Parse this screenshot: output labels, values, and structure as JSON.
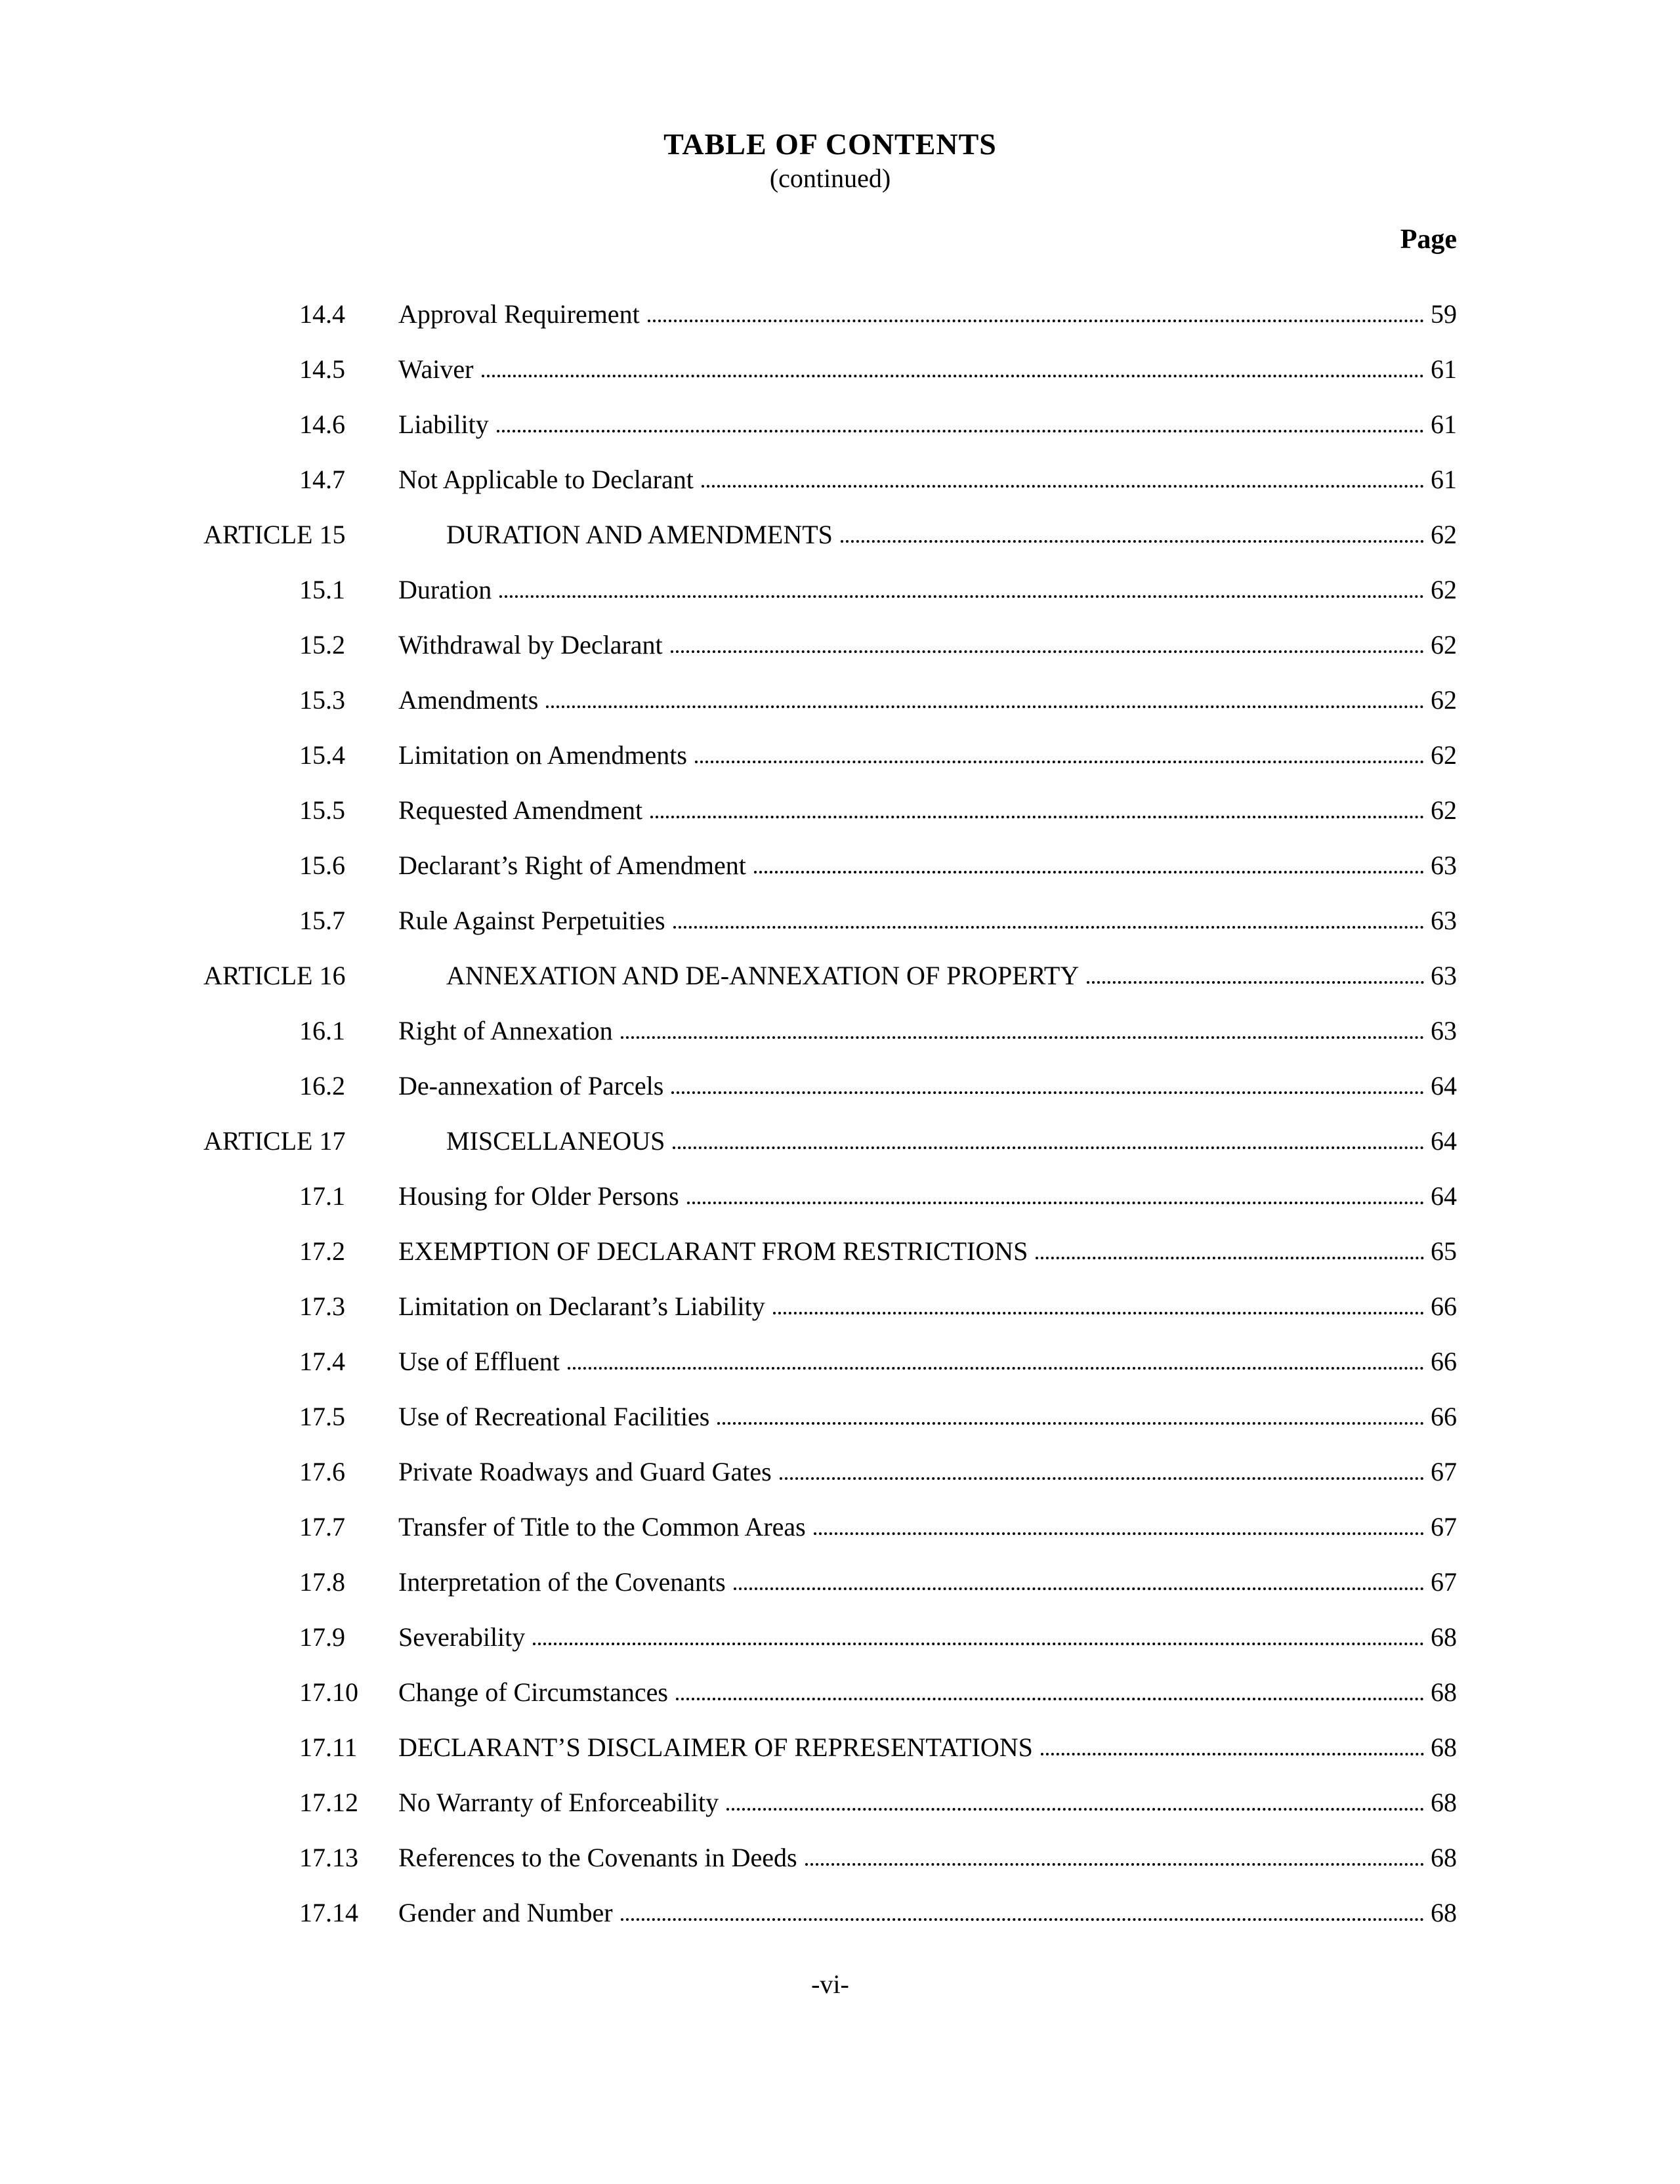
{
  "header": {
    "title": "TABLE OF CONTENTS",
    "subtitle": "(continued)",
    "page_column_label": "Page"
  },
  "toc_entries": [
    {
      "type": "section",
      "label": "14.4",
      "title": "Approval Requirement",
      "page": "59"
    },
    {
      "type": "section",
      "label": "14.5",
      "title": "Waiver",
      "page": "61"
    },
    {
      "type": "section",
      "label": "14.6",
      "title": "Liability",
      "page": "61"
    },
    {
      "type": "section",
      "label": "14.7",
      "title": "Not Applicable to Declarant",
      "page": "61"
    },
    {
      "type": "article",
      "label": "ARTICLE 15",
      "title": "DURATION AND AMENDMENTS",
      "page": "62"
    },
    {
      "type": "section",
      "label": "15.1",
      "title": "Duration",
      "page": "62"
    },
    {
      "type": "section",
      "label": "15.2",
      "title": "Withdrawal by Declarant",
      "page": "62"
    },
    {
      "type": "section",
      "label": "15.3",
      "title": "Amendments",
      "page": "62"
    },
    {
      "type": "section",
      "label": "15.4",
      "title": "Limitation on Amendments",
      "page": "62"
    },
    {
      "type": "section",
      "label": "15.5",
      "title": "Requested Amendment",
      "page": "62"
    },
    {
      "type": "section",
      "label": "15.6",
      "title": "Declarant’s Right of Amendment",
      "page": "63"
    },
    {
      "type": "section",
      "label": "15.7",
      "title": "Rule Against Perpetuities",
      "page": "63"
    },
    {
      "type": "article",
      "label": "ARTICLE 16",
      "title": "ANNEXATION AND DE-ANNEXATION OF PROPERTY",
      "page": "63"
    },
    {
      "type": "section",
      "label": "16.1",
      "title": "Right of Annexation",
      "page": "63"
    },
    {
      "type": "section",
      "label": "16.2",
      "title": "De-annexation of Parcels",
      "page": "64"
    },
    {
      "type": "article",
      "label": "ARTICLE 17",
      "title": "MISCELLANEOUS",
      "page": "64"
    },
    {
      "type": "section",
      "label": "17.1",
      "title": "Housing for Older Persons",
      "page": "64"
    },
    {
      "type": "section",
      "label": "17.2",
      "title": "EXEMPTION OF DECLARANT FROM RESTRICTIONS",
      "page": "65"
    },
    {
      "type": "section",
      "label": "17.3",
      "title": "Limitation on Declarant’s Liability",
      "page": "66"
    },
    {
      "type": "section",
      "label": "17.4",
      "title": "Use of Effluent",
      "page": "66"
    },
    {
      "type": "section",
      "label": "17.5",
      "title": "Use of Recreational Facilities",
      "page": "66"
    },
    {
      "type": "section",
      "label": "17.6",
      "title": "Private Roadways and Guard Gates",
      "page": "67"
    },
    {
      "type": "section",
      "label": "17.7",
      "title": "Transfer of Title to the Common Areas",
      "page": "67"
    },
    {
      "type": "section",
      "label": "17.8",
      "title": "Interpretation of the Covenants",
      "page": "67"
    },
    {
      "type": "section",
      "label": "17.9",
      "title": "Severability",
      "page": "68"
    },
    {
      "type": "section",
      "label": "17.10",
      "title": "Change of Circumstances",
      "page": "68"
    },
    {
      "type": "section",
      "label": "17.11",
      "title": "DECLARANT’S DISCLAIMER OF REPRESENTATIONS",
      "page": "68"
    },
    {
      "type": "section",
      "label": "17.12",
      "title": "No Warranty of Enforceability",
      "page": "68"
    },
    {
      "type": "section",
      "label": "17.13",
      "title": "References to the Covenants in Deeds",
      "page": "68"
    },
    {
      "type": "section",
      "label": "17.14",
      "title": "Gender and Number",
      "page": "68"
    }
  ],
  "footer": {
    "page_number": "-vi-"
  }
}
